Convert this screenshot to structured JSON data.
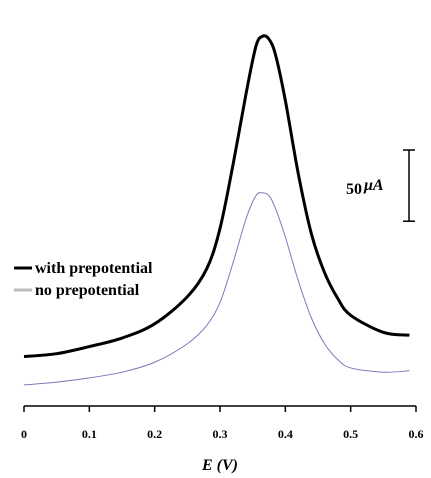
{
  "chart_data": {
    "type": "line",
    "title": "",
    "xlabel": "E (V)",
    "ylabel": "",
    "xlim": [
      0,
      0.6
    ],
    "ylim": [
      0,
      260
    ],
    "x_ticks": [
      0,
      0.1,
      0.2,
      0.3,
      0.4,
      0.5,
      0.6
    ],
    "x_tick_labels": [
      "0",
      "0.1",
      "0.2",
      "0.3",
      "0.4",
      "0.5",
      "0.6"
    ],
    "grid": false,
    "legend_position": "left",
    "scale_bar": {
      "value": 50,
      "label": "50",
      "unit": "μA"
    },
    "series": [
      {
        "name": "with prepotential",
        "color": "#000000",
        "x": [
          0,
          0.05,
          0.1,
          0.15,
          0.2,
          0.25,
          0.28,
          0.3,
          0.32,
          0.34,
          0.355,
          0.365,
          0.375,
          0.385,
          0.4,
          0.42,
          0.44,
          0.46,
          0.48,
          0.5,
          0.55,
          0.59
        ],
        "y": [
          20,
          22,
          27,
          33,
          43,
          62,
          82,
          110,
          155,
          205,
          238,
          245,
          243,
          232,
          200,
          148,
          106,
          79,
          61,
          49,
          37,
          35
        ]
      },
      {
        "name": "no prepotential",
        "color": "#7a7ab8",
        "x": [
          0,
          0.05,
          0.1,
          0.15,
          0.2,
          0.25,
          0.28,
          0.3,
          0.32,
          0.34,
          0.355,
          0.365,
          0.375,
          0.385,
          0.4,
          0.42,
          0.44,
          0.46,
          0.48,
          0.5,
          0.55,
          0.59
        ],
        "y": [
          0,
          2,
          5,
          9,
          16,
          29,
          42,
          58,
          86,
          117,
          133,
          135,
          133,
          124,
          104,
          73,
          47,
          29,
          18,
          12,
          9,
          10
        ]
      }
    ]
  }
}
